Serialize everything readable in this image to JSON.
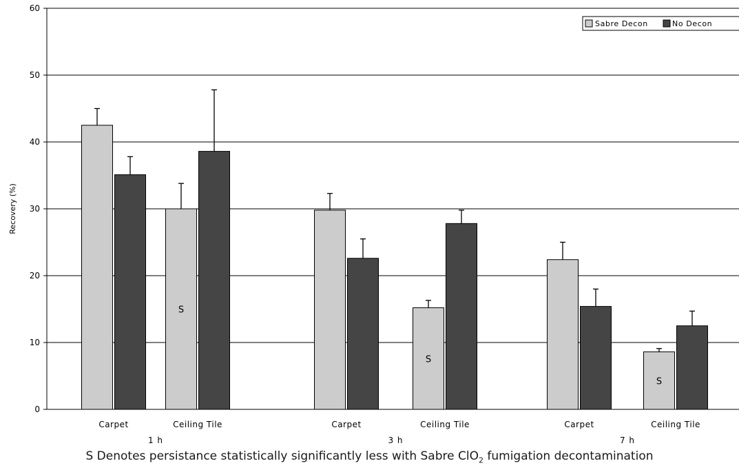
{
  "chart_data": {
    "type": "bar",
    "ylabel": "Recovery (%)",
    "ylim": [
      0,
      60
    ],
    "yticks": [
      0,
      10,
      20,
      30,
      40,
      50,
      60
    ],
    "grid": true,
    "legend_position": "top-right",
    "colors": {
      "Sabre Decon": "#cccccc",
      "No Decon": "#454545"
    },
    "groups": [
      {
        "label": "1 h",
        "categories": [
          {
            "label": "Carpet",
            "values": {
              "Sabre Decon": 42.5,
              "No Decon": 35.1
            },
            "errors": {
              "Sabre Decon": 2.5,
              "No Decon": 2.7
            },
            "significant": false
          },
          {
            "label": "Ceiling Tile",
            "values": {
              "Sabre Decon": 30.0,
              "No Decon": 38.6
            },
            "errors": {
              "Sabre Decon": 3.8,
              "No Decon": 9.2
            },
            "significant": true
          }
        ]
      },
      {
        "label": "3 h",
        "categories": [
          {
            "label": "Carpet",
            "values": {
              "Sabre Decon": 29.8,
              "No Decon": 22.6
            },
            "errors": {
              "Sabre Decon": 2.5,
              "No Decon": 2.9
            },
            "significant": false
          },
          {
            "label": "Ceiling Tile",
            "values": {
              "Sabre Decon": 15.2,
              "No Decon": 27.8
            },
            "errors": {
              "Sabre Decon": 1.1,
              "No Decon": 2.0
            },
            "significant": true
          }
        ]
      },
      {
        "label": "7 h",
        "categories": [
          {
            "label": "Carpet",
            "values": {
              "Sabre Decon": 22.4,
              "No Decon": 15.4
            },
            "errors": {
              "Sabre Decon": 2.6,
              "No Decon": 2.6
            },
            "significant": false
          },
          {
            "label": "Ceiling Tile",
            "values": {
              "Sabre Decon": 8.6,
              "No Decon": 12.5
            },
            "errors": {
              "Sabre Decon": 0.5,
              "No Decon": 2.2
            },
            "significant": true
          }
        ]
      }
    ],
    "series": [
      {
        "name": "Sabre Decon"
      },
      {
        "name": "No Decon"
      }
    ],
    "significance_marker": "S"
  },
  "footnote": {
    "before": "S Denotes persistance statistically significantly less with Sabre ClO",
    "subscript": "2",
    "after": " fumigation decontamination"
  }
}
